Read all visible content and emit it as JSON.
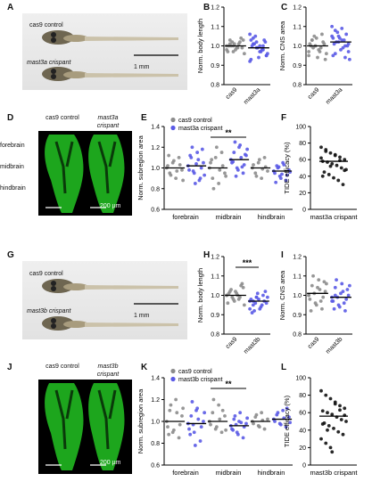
{
  "panels": {
    "A": {
      "label": "A",
      "rows": [
        "cas9 control",
        "mast3a crispant"
      ],
      "scalebar": "1 mm"
    },
    "B": {
      "label": "B",
      "ylabel": "Norm. body length",
      "yticks": [
        "0.8",
        "0.9",
        "1.0",
        "1.1",
        "1.2"
      ],
      "groups": [
        "cas9",
        "mast3a"
      ]
    },
    "C": {
      "label": "C",
      "ylabel": "Norm. CNS area",
      "yticks": [
        "0.8",
        "0.9",
        "1.0",
        "1.1",
        "1.2"
      ],
      "groups": [
        "cas9",
        "mast3a"
      ]
    },
    "D": {
      "label": "D",
      "cols": [
        "cas9 control",
        "mast3a crispant"
      ],
      "rows": [
        "forebrain",
        "midbrain",
        "hindbrain"
      ],
      "scalebar": "200 µm"
    },
    "E": {
      "label": "E",
      "ylabel": "Norm. subregion area",
      "yticks": [
        "0.6",
        "0.8",
        "1.0",
        "1.2",
        "1.4"
      ],
      "legend": [
        "cas9 control",
        "mast3a crispant"
      ],
      "regions": [
        "forebrain",
        "midbrain",
        "hindbrain"
      ],
      "sig": "**"
    },
    "F": {
      "label": "F",
      "ylabel": "TIDE efficacy (%)",
      "yticks": [
        "0",
        "20",
        "40",
        "60",
        "80",
        "100"
      ],
      "group": "mast3a crispant"
    },
    "G": {
      "label": "G",
      "rows": [
        "cas9 control",
        "mast3b crispant"
      ],
      "scalebar": "1 mm"
    },
    "H": {
      "label": "H",
      "ylabel": "Norm. body length",
      "yticks": [
        "0.8",
        "0.9",
        "1.0",
        "1.1",
        "1.2"
      ],
      "groups": [
        "cas9",
        "mast3b"
      ],
      "sig": "***"
    },
    "I": {
      "label": "I",
      "ylabel": "Norm. CNS area",
      "yticks": [
        "0.8",
        "0.9",
        "1.0",
        "1.1",
        "1.2"
      ],
      "groups": [
        "cas9",
        "mast3b"
      ]
    },
    "J": {
      "label": "J",
      "cols": [
        "cas9 control",
        "mast3b crispant"
      ],
      "scalebar": "200 µm"
    },
    "K": {
      "label": "K",
      "ylabel": "Norm. subregion area",
      "yticks": [
        "0.6",
        "0.8",
        "1.0",
        "1.2",
        "1.4"
      ],
      "legend": [
        "cas9 control",
        "mast3b crispant"
      ],
      "regions": [
        "forebrain",
        "midbrain",
        "hindbrain"
      ],
      "sig": "**"
    },
    "L": {
      "label": "L",
      "ylabel": "TIDE efficacy (%)",
      "yticks": [
        "0",
        "20",
        "40",
        "60",
        "80",
        "100"
      ],
      "group": "mast3b crispant"
    }
  },
  "colors": {
    "control": "#8c8c8c",
    "crispant": "#5a5ae6",
    "green": "#22c322"
  },
  "chart_data": [
    {
      "type": "scatter",
      "panel": "B",
      "ylim": [
        0.8,
        1.2
      ],
      "groups": [
        {
          "name": "cas9",
          "mean": 1.0,
          "values": [
            0.98,
            1.01,
            1.0,
            0.99,
            1.02,
            1.03,
            0.97,
            1.0,
            1.01,
            0.99,
            1.04,
            0.96,
            1.0,
            1.02,
            0.98,
            1.01,
            0.99,
            1.0,
            1.03,
            0.97
          ]
        },
        {
          "name": "mast3a",
          "mean": 0.99,
          "values": [
            1.06,
            1.04,
            1.02,
            1.0,
            0.98,
            0.95,
            0.93,
            1.01,
            0.99,
            0.97,
            1.03,
            0.96,
            1.0,
            1.05,
            0.94,
            0.98,
            1.02,
            0.92,
            1.01,
            0.99,
            0.97,
            1.0,
            0.95,
            1.03
          ]
        }
      ]
    },
    {
      "type": "scatter",
      "panel": "C",
      "ylim": [
        0.8,
        1.2
      ],
      "groups": [
        {
          "name": "cas9",
          "mean": 1.0,
          "values": [
            0.95,
            1.03,
            1.0,
            0.98,
            1.06,
            0.93,
            1.01,
            0.99,
            1.04,
            0.97,
            1.02,
            0.96,
            1.0,
            1.05,
            0.94,
            0.99,
            1.01,
            0.97,
            1.03,
            1.0
          ]
        },
        {
          "name": "mast3a",
          "mean": 1.02,
          "values": [
            1.1,
            1.08,
            1.05,
            1.03,
            1.0,
            0.97,
            0.95,
            1.02,
            1.04,
            0.99,
            1.06,
            0.93,
            1.01,
            1.07,
            0.98,
            1.03,
            1.0,
            1.05,
            0.96,
            1.02,
            1.09,
            0.94,
            1.01,
            1.04
          ]
        }
      ]
    },
    {
      "type": "scatter",
      "panel": "E",
      "ylim": [
        0.6,
        1.4
      ],
      "groups": [
        {
          "name": "forebrain cas9 control",
          "mean": 1.0,
          "values": [
            1.0,
            0.95,
            1.05,
            0.9,
            1.1,
            0.98,
            1.02,
            0.93,
            1.07,
            0.97,
            1.03,
            0.88,
            1.12
          ]
        },
        {
          "name": "forebrain mast3a crispant",
          "mean": 1.02,
          "values": [
            1.02,
            1.1,
            0.95,
            1.15,
            0.9,
            1.05,
            0.98,
            1.2,
            0.85,
            1.08,
            1.0,
            0.93,
            1.12,
            0.97,
            1.04,
            0.88,
            1.18
          ]
        },
        {
          "name": "midbrain cas9 control",
          "mean": 1.0,
          "values": [
            1.0,
            0.9,
            1.1,
            0.85,
            1.15,
            0.95,
            1.05,
            0.8,
            1.2,
            0.98,
            1.02,
            0.92,
            1.08
          ]
        },
        {
          "name": "midbrain mast3a crispant",
          "mean": 1.08,
          "values": [
            1.08,
            1.15,
            1.0,
            1.22,
            0.95,
            1.12,
            1.05,
            1.25,
            0.98,
            1.1,
            1.03,
            1.18,
            1.06,
            0.92,
            1.2,
            1.01,
            1.13
          ]
        },
        {
          "name": "hindbrain cas9 control",
          "mean": 1.0,
          "values": [
            1.0,
            0.95,
            1.05,
            0.9,
            1.1,
            0.97,
            1.03,
            0.92,
            1.08,
            0.99,
            1.01
          ]
        },
        {
          "name": "hindbrain mast3a crispant",
          "mean": 0.97,
          "values": [
            0.97,
            1.02,
            0.92,
            1.05,
            0.88,
            0.98,
            0.95,
            1.0,
            0.9,
            1.03,
            0.93,
            0.96,
            0.86,
            1.01,
            0.94
          ]
        }
      ]
    },
    {
      "type": "scatter",
      "panel": "F",
      "ylim": [
        0,
        100
      ],
      "groups": [
        {
          "name": "mast3a crispant",
          "mean": 58,
          "values": [
            75,
            72,
            68,
            65,
            63,
            60,
            58,
            57,
            55,
            53,
            50,
            48,
            45,
            42,
            38,
            35,
            30,
            62,
            70,
            52,
            66,
            59,
            47,
            40
          ]
        }
      ]
    },
    {
      "type": "scatter",
      "panel": "H",
      "ylim": [
        0.8,
        1.2
      ],
      "groups": [
        {
          "name": "cas9",
          "mean": 1.0,
          "values": [
            1.0,
            1.02,
            0.98,
            1.01,
            0.99,
            1.04,
            0.96,
            1.03,
            0.97,
            1.0,
            1.05,
            0.95,
            1.01,
            0.99,
            1.02,
            0.98,
            1.06,
            1.0
          ]
        },
        {
          "name": "mast3b",
          "mean": 0.97,
          "values": [
            0.97,
            0.95,
            0.99,
            0.93,
            1.0,
            0.96,
            0.98,
            0.92,
            1.01,
            0.94,
            0.97,
            0.99,
            0.91,
            0.96,
            0.98,
            0.95,
            1.02,
            0.93,
            0.97,
            0.99
          ]
        }
      ]
    },
    {
      "type": "scatter",
      "panel": "I",
      "ylim": [
        0.8,
        1.2
      ],
      "groups": [
        {
          "name": "cas9",
          "mean": 1.01,
          "values": [
            1.0,
            1.05,
            0.96,
            1.08,
            0.93,
            1.02,
            0.98,
            1.1,
            0.95,
            1.03,
            0.99,
            1.06,
            0.92,
            1.01,
            1.04,
            0.97,
            1.07,
            1.0
          ]
        },
        {
          "name": "mast3b",
          "mean": 0.99,
          "values": [
            0.99,
            1.04,
            0.95,
            1.06,
            0.92,
            1.0,
            0.97,
            1.08,
            0.94,
            1.02,
            0.98,
            1.05,
            0.93,
            0.99,
            1.01,
            0.96,
            1.03,
            0.97,
            1.0
          ]
        }
      ]
    },
    {
      "type": "scatter",
      "panel": "K",
      "ylim": [
        0.6,
        1.4
      ],
      "groups": [
        {
          "name": "forebrain cas9 control",
          "mean": 1.0,
          "values": [
            1.0,
            1.1,
            0.9,
            1.2,
            0.85,
            1.05,
            0.95,
            1.15,
            0.92,
            1.08,
            0.97,
            1.12,
            0.88
          ]
        },
        {
          "name": "forebrain mast3b crispant",
          "mean": 0.98,
          "values": [
            0.98,
            1.05,
            0.9,
            1.12,
            0.82,
            1.0,
            0.93,
            1.18,
            0.78,
            1.02,
            0.95,
            1.08,
            0.88,
            0.97,
            1.1
          ]
        },
        {
          "name": "midbrain cas9 control",
          "mean": 1.0,
          "values": [
            1.0,
            1.08,
            0.93,
            1.15,
            0.9,
            1.05,
            0.97,
            1.2,
            0.95,
            1.02,
            1.1,
            0.92
          ]
        },
        {
          "name": "midbrain mast3b crispant",
          "mean": 0.96,
          "values": [
            0.96,
            1.02,
            0.9,
            1.08,
            0.85,
            0.98,
            0.93,
            1.05,
            0.88,
            0.99,
            0.95,
            1.03,
            0.92,
            0.97,
            1.0
          ]
        },
        {
          "name": "hindbrain cas9 control",
          "mean": 1.0,
          "values": [
            1.0,
            1.04,
            0.96,
            1.08,
            0.93,
            1.02,
            0.98,
            1.06,
            0.95,
            1.01
          ]
        },
        {
          "name": "hindbrain mast3b crispant",
          "mean": 1.02,
          "values": [
            1.02,
            1.06,
            0.98,
            1.1,
            0.95,
            1.04,
            1.0,
            1.08,
            0.97,
            1.03,
            1.12,
            0.99
          ]
        }
      ]
    },
    {
      "type": "scatter",
      "panel": "L",
      "ylim": [
        0,
        100
      ],
      "groups": [
        {
          "name": "mast3b crispant",
          "mean": 56,
          "values": [
            85,
            80,
            76,
            72,
            68,
            65,
            62,
            60,
            58,
            55,
            52,
            50,
            48,
            45,
            42,
            38,
            35,
            30,
            25,
            20,
            70,
            63,
            57,
            47,
            40,
            15
          ]
        }
      ]
    }
  ]
}
